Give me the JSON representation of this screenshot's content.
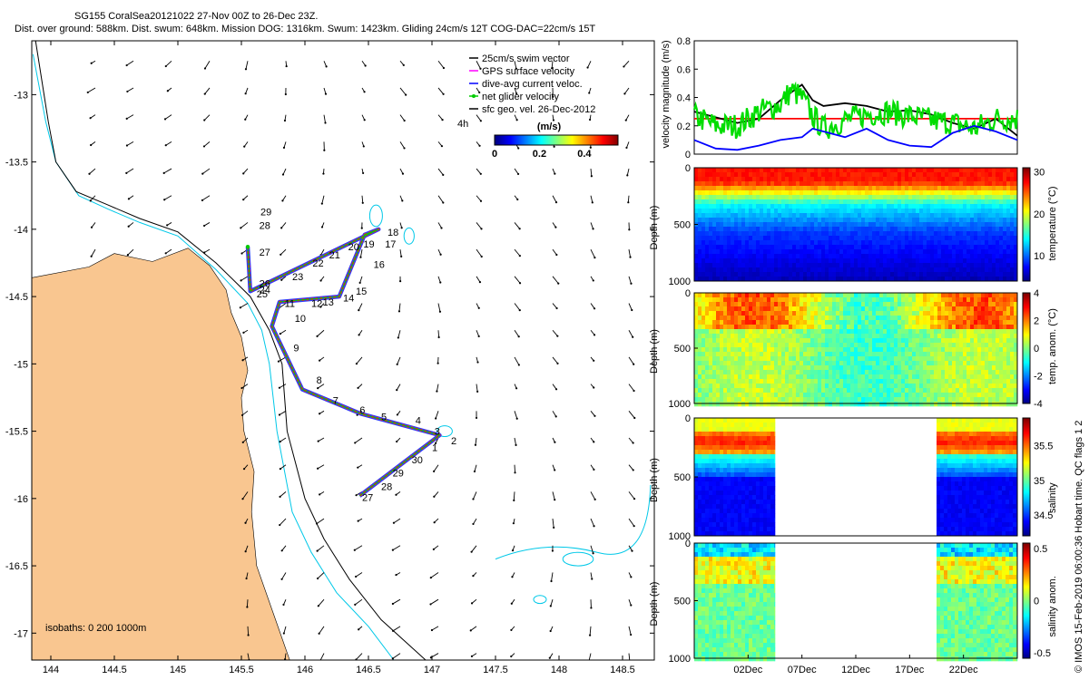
{
  "header": {
    "line1": "SG155 CoralSea20121022 27-Nov 00Z to 26-Dec 23Z.",
    "line2": "Dist. over ground: 588km. Dist. swum: 648km. Mission DOG: 1316km. Swum: 1423km. Gliding 24cm/s 12T COG-DAC=22cm/s 15T"
  },
  "footer_note": "© IMOS 15-Feb-2019 06:00:36 Hobart time. QC flags 1  2",
  "chart_data": [
    {
      "type": "map",
      "xlim": [
        143.85,
        148.75
      ],
      "ylim": [
        -17.2,
        -12.6
      ],
      "x_ticks": [
        144,
        144.5,
        145,
        145.5,
        146,
        146.5,
        147,
        147.5,
        148,
        148.5
      ],
      "x_tick_labels": [
        "144",
        "144.5",
        "145",
        "145.5",
        "146",
        "146.5",
        "147",
        "147.5",
        "148",
        "148.5"
      ],
      "y_ticks": [
        -13,
        -13.5,
        -14,
        -14.5,
        -15,
        -15.5,
        -16,
        -16.5,
        -17
      ],
      "y_tick_labels": [
        "-13",
        "-13.5",
        "-14",
        "-14.5",
        "-15",
        "-15.5",
        "-16",
        "-16.5",
        "-17"
      ],
      "legend": {
        "items": [
          {
            "label": "25cm/s swim vector",
            "color": "#000000"
          },
          {
            "label": "GPS surface velocity",
            "color": "#ff00ff"
          },
          {
            "label": "dive-avg current veloc.",
            "color": "#0000ff"
          },
          {
            "label": "net glider velocity",
            "color": "#00cc00"
          },
          {
            "label": "sfc geo. vel. 26-Dec-2012",
            "color": "#000000"
          }
        ],
        "placement": "top-right",
        "extra_label": "4h"
      },
      "colorbar": {
        "title": "(m/s)",
        "ticks": [
          0,
          0.2,
          0.4
        ],
        "tick_labels": [
          "0",
          "0.2",
          "0.4"
        ],
        "range": [
          0,
          0.55
        ]
      },
      "isobaths_label": "isobaths: 0   200  1000m",
      "land_color": "#f9c690",
      "track": [
        {
          "lon": 145.55,
          "lat": -14.13
        },
        {
          "lon": 145.57,
          "lat": -14.46
        },
        {
          "lon": 146.58,
          "lat": -14.0
        },
        {
          "lon": 146.47,
          "lat": -14.04
        },
        {
          "lon": 146.27,
          "lat": -14.5
        },
        {
          "lon": 145.8,
          "lat": -14.54
        },
        {
          "lon": 145.74,
          "lat": -14.72
        },
        {
          "lon": 145.98,
          "lat": -15.19
        },
        {
          "lon": 146.44,
          "lat": -15.37
        },
        {
          "lon": 147.06,
          "lat": -15.53
        },
        {
          "lon": 146.43,
          "lat": -15.98
        }
      ],
      "day_labels": [
        {
          "text": "29",
          "lon": 145.65,
          "lat": -13.87
        },
        {
          "text": "28",
          "lon": 145.64,
          "lat": -13.97
        },
        {
          "text": "27",
          "lon": 145.64,
          "lat": -14.17
        },
        {
          "text": "26",
          "lon": 145.64,
          "lat": -14.4
        },
        {
          "text": "24",
          "lon": 145.64,
          "lat": -14.45
        },
        {
          "text": "25",
          "lon": 145.62,
          "lat": -14.48
        },
        {
          "text": "23",
          "lon": 145.9,
          "lat": -14.35
        },
        {
          "text": "22",
          "lon": 146.06,
          "lat": -14.25
        },
        {
          "text": "21",
          "lon": 146.19,
          "lat": -14.19
        },
        {
          "text": "20",
          "lon": 146.34,
          "lat": -14.13
        },
        {
          "text": "19",
          "lon": 146.46,
          "lat": -14.11
        },
        {
          "text": "18",
          "lon": 146.65,
          "lat": -14.02
        },
        {
          "text": "17",
          "lon": 146.63,
          "lat": -14.11
        },
        {
          "text": "16",
          "lon": 146.54,
          "lat": -14.26
        },
        {
          "text": "15",
          "lon": 146.4,
          "lat": -14.46
        },
        {
          "text": "14",
          "lon": 146.3,
          "lat": -14.51
        },
        {
          "text": "13",
          "lon": 146.14,
          "lat": -14.54
        },
        {
          "text": "12",
          "lon": 146.05,
          "lat": -14.55
        },
        {
          "text": "11",
          "lon": 145.84,
          "lat": -14.55
        },
        {
          "text": "10",
          "lon": 145.92,
          "lat": -14.66
        },
        {
          "text": "9",
          "lon": 145.91,
          "lat": -14.88
        },
        {
          "text": "8",
          "lon": 146.09,
          "lat": -15.12
        },
        {
          "text": "7",
          "lon": 146.22,
          "lat": -15.27
        },
        {
          "text": "6",
          "lon": 146.43,
          "lat": -15.34
        },
        {
          "text": "5",
          "lon": 146.6,
          "lat": -15.39
        },
        {
          "text": "4",
          "lon": 146.87,
          "lat": -15.42
        },
        {
          "text": "3",
          "lon": 147.02,
          "lat": -15.5
        },
        {
          "text": "2",
          "lon": 147.15,
          "lat": -15.57
        },
        {
          "text": "1",
          "lon": 147.0,
          "lat": -15.62
        },
        {
          "text": "30",
          "lon": 146.84,
          "lat": -15.71
        },
        {
          "text": "29",
          "lon": 146.69,
          "lat": -15.81
        },
        {
          "text": "28",
          "lon": 146.6,
          "lat": -15.91
        },
        {
          "text": "27",
          "lon": 146.45,
          "lat": -15.99
        }
      ]
    },
    {
      "type": "line",
      "ylabel": "velocity magnitude (m/s)",
      "ylim": [
        0,
        0.8
      ],
      "y_ticks": [
        0,
        0.2,
        0.4,
        0.6,
        0.8
      ],
      "y_tick_labels": [
        "0",
        "0.2",
        "0.4",
        "0.6",
        "0.8"
      ],
      "xlim": [
        0,
        30
      ],
      "series": [
        {
          "color": "#ff0000",
          "t": [
            0,
            30
          ],
          "values": [
            0.25,
            0.25
          ]
        },
        {
          "color": "#000000",
          "t": [
            0,
            2,
            4,
            6,
            8,
            10,
            11,
            12,
            14,
            16,
            18,
            20,
            22,
            24,
            26,
            28,
            30
          ],
          "values": [
            0.3,
            0.26,
            0.22,
            0.25,
            0.38,
            0.49,
            0.38,
            0.34,
            0.36,
            0.34,
            0.3,
            0.31,
            0.28,
            0.22,
            0.18,
            0.25,
            0.13
          ]
        },
        {
          "color": "#00dd00",
          "t": [
            0,
            2,
            4,
            6,
            8,
            9,
            10,
            11,
            12,
            14,
            16,
            18,
            20,
            22,
            24,
            26,
            28,
            30
          ],
          "values": [
            0.27,
            0.2,
            0.2,
            0.3,
            0.35,
            0.45,
            0.4,
            0.27,
            0.18,
            0.24,
            0.28,
            0.3,
            0.27,
            0.24,
            0.22,
            0.18,
            0.25,
            0.25
          ]
        },
        {
          "color": "#0000ff",
          "t": [
            0,
            2,
            4,
            6,
            8,
            10,
            11,
            12,
            14,
            16,
            18,
            20,
            22,
            24,
            26,
            28,
            30
          ],
          "values": [
            0.1,
            0.04,
            0.03,
            0.06,
            0.1,
            0.12,
            0.18,
            0.16,
            0.12,
            0.18,
            0.1,
            0.06,
            0.05,
            0.15,
            0.2,
            0.16,
            0.1
          ]
        }
      ]
    },
    {
      "type": "heatmap",
      "ylabel": "Depth (m)",
      "ylim": [
        0,
        1000
      ],
      "y_ticks": [
        0,
        500,
        1000
      ],
      "y_tick_labels": [
        "0",
        "500",
        "1000"
      ],
      "xlim": [
        0,
        30
      ],
      "coverage": [
        [
          0,
          30
        ]
      ],
      "colorbar": {
        "label": "temperature (°C)",
        "ticks": [
          10,
          20,
          30
        ],
        "tick_labels": [
          "10",
          "20",
          "30"
        ],
        "range": [
          4,
          31
        ]
      }
    },
    {
      "type": "heatmap",
      "ylabel": "Depth (m)",
      "ylim": [
        0,
        1000
      ],
      "y_ticks": [
        0,
        500,
        1000
      ],
      "y_tick_labels": [
        "0",
        "500",
        "1000"
      ],
      "xlim": [
        0,
        30
      ],
      "coverage": [
        [
          0,
          30
        ]
      ],
      "colorbar": {
        "label": "temp. anom. (°C)",
        "ticks": [
          4,
          2,
          0,
          -2,
          -4
        ],
        "tick_labels": [
          "4",
          "2",
          "0",
          "-2",
          "-4"
        ],
        "range": [
          -4,
          4
        ]
      }
    },
    {
      "type": "heatmap",
      "ylabel": "Depth (m)",
      "ylim": [
        0,
        1000
      ],
      "y_ticks": [
        0,
        500,
        1000
      ],
      "y_tick_labels": [
        "0",
        "500",
        "1000"
      ],
      "xlim": [
        0,
        30
      ],
      "coverage": [
        [
          0,
          7.5
        ],
        [
          22.5,
          30
        ]
      ],
      "colorbar": {
        "label": "salinity",
        "ticks": [
          35.5,
          35,
          34.5
        ],
        "tick_labels": [
          "35.5",
          "35",
          "34.5"
        ],
        "range": [
          34.2,
          35.9
        ]
      }
    },
    {
      "type": "heatmap",
      "ylabel": "Depth (m)",
      "ylim": [
        0,
        1000
      ],
      "y_ticks": [
        0,
        500,
        1000
      ],
      "y_tick_labels": [
        "0",
        "500",
        "1000"
      ],
      "xlim": [
        0,
        30
      ],
      "coverage": [
        [
          0,
          7.5
        ],
        [
          22.5,
          30
        ]
      ],
      "colorbar": {
        "label": "salinity anom.",
        "ticks": [
          0.5,
          0,
          -0.5
        ],
        "tick_labels": [
          "0.5",
          "0",
          "-0.5"
        ],
        "range": [
          -0.55,
          0.55
        ]
      },
      "x_ticks": [
        5,
        10,
        15,
        20,
        25
      ],
      "x_tick_labels": [
        "02Dec",
        "07Dec",
        "12Dec",
        "17Dec",
        "22Dec"
      ]
    }
  ]
}
